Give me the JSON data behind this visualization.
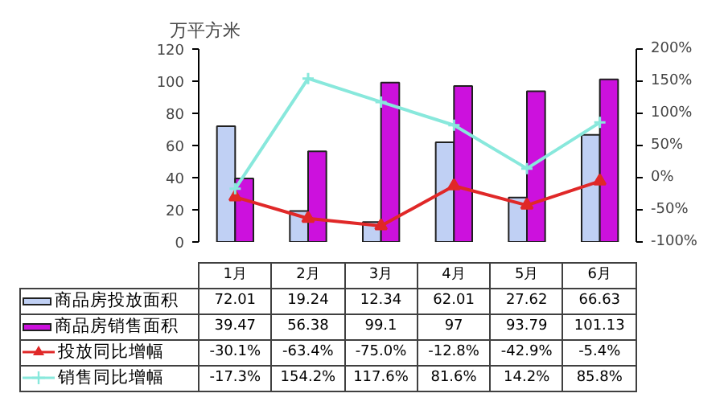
{
  "chart_data": {
    "type": "bar",
    "ylabel": "万平方米",
    "categories": [
      "1月",
      "2月",
      "3月",
      "4月",
      "5月",
      "6月"
    ],
    "series": [
      {
        "name": "商品房投放面积",
        "color": "#c0d0f4",
        "values": [
          72.01,
          19.24,
          12.34,
          62.01,
          27.62,
          66.63
        ],
        "value_labels": [
          "72.01",
          "19.24",
          "12.34",
          "62.01",
          "27.62",
          "66.63"
        ]
      },
      {
        "name": "商品房销售面积",
        "color": "#cc11dd",
        "values": [
          39.47,
          56.38,
          99.1,
          97,
          93.79,
          101.13
        ],
        "value_labels": [
          "39.47",
          "56.38",
          "99.1",
          "97",
          "93.79",
          "101.13"
        ]
      },
      {
        "name": "投放同比增幅",
        "type": "line",
        "axis": "y2",
        "marker": "triangle",
        "color": "#e02828",
        "values": [
          -30.1,
          -63.4,
          -75.0,
          -12.8,
          -42.9,
          -5.4
        ],
        "value_labels": [
          "-30.1%",
          "-63.4%",
          "-75.0%",
          "-12.8%",
          "-42.9%",
          "-5.4%"
        ]
      },
      {
        "name": "销售同比增幅",
        "type": "line",
        "axis": "y2",
        "marker": "cross",
        "color": "#88e8dc",
        "values": [
          -17.3,
          154.2,
          117.6,
          81.6,
          14.2,
          85.8
        ],
        "value_labels": [
          "-17.3%",
          "154.2%",
          "117.6%",
          "81.6%",
          "14.2%",
          "85.8%"
        ]
      }
    ],
    "ylim": [
      0,
      120
    ],
    "yticks": [
      0,
      20,
      40,
      60,
      80,
      100,
      120
    ],
    "y2lim": [
      -100,
      200
    ],
    "y2ticks": [
      {
        "value": -100,
        "label": "-100%"
      },
      {
        "value": -50,
        "label": "-50%"
      },
      {
        "value": 0,
        "label": "0%"
      },
      {
        "value": 50,
        "label": "50%"
      },
      {
        "value": 100,
        "label": "100%"
      },
      {
        "value": 150,
        "label": "150%"
      },
      {
        "value": 200,
        "label": "200%"
      }
    ],
    "legend": "bottom"
  }
}
